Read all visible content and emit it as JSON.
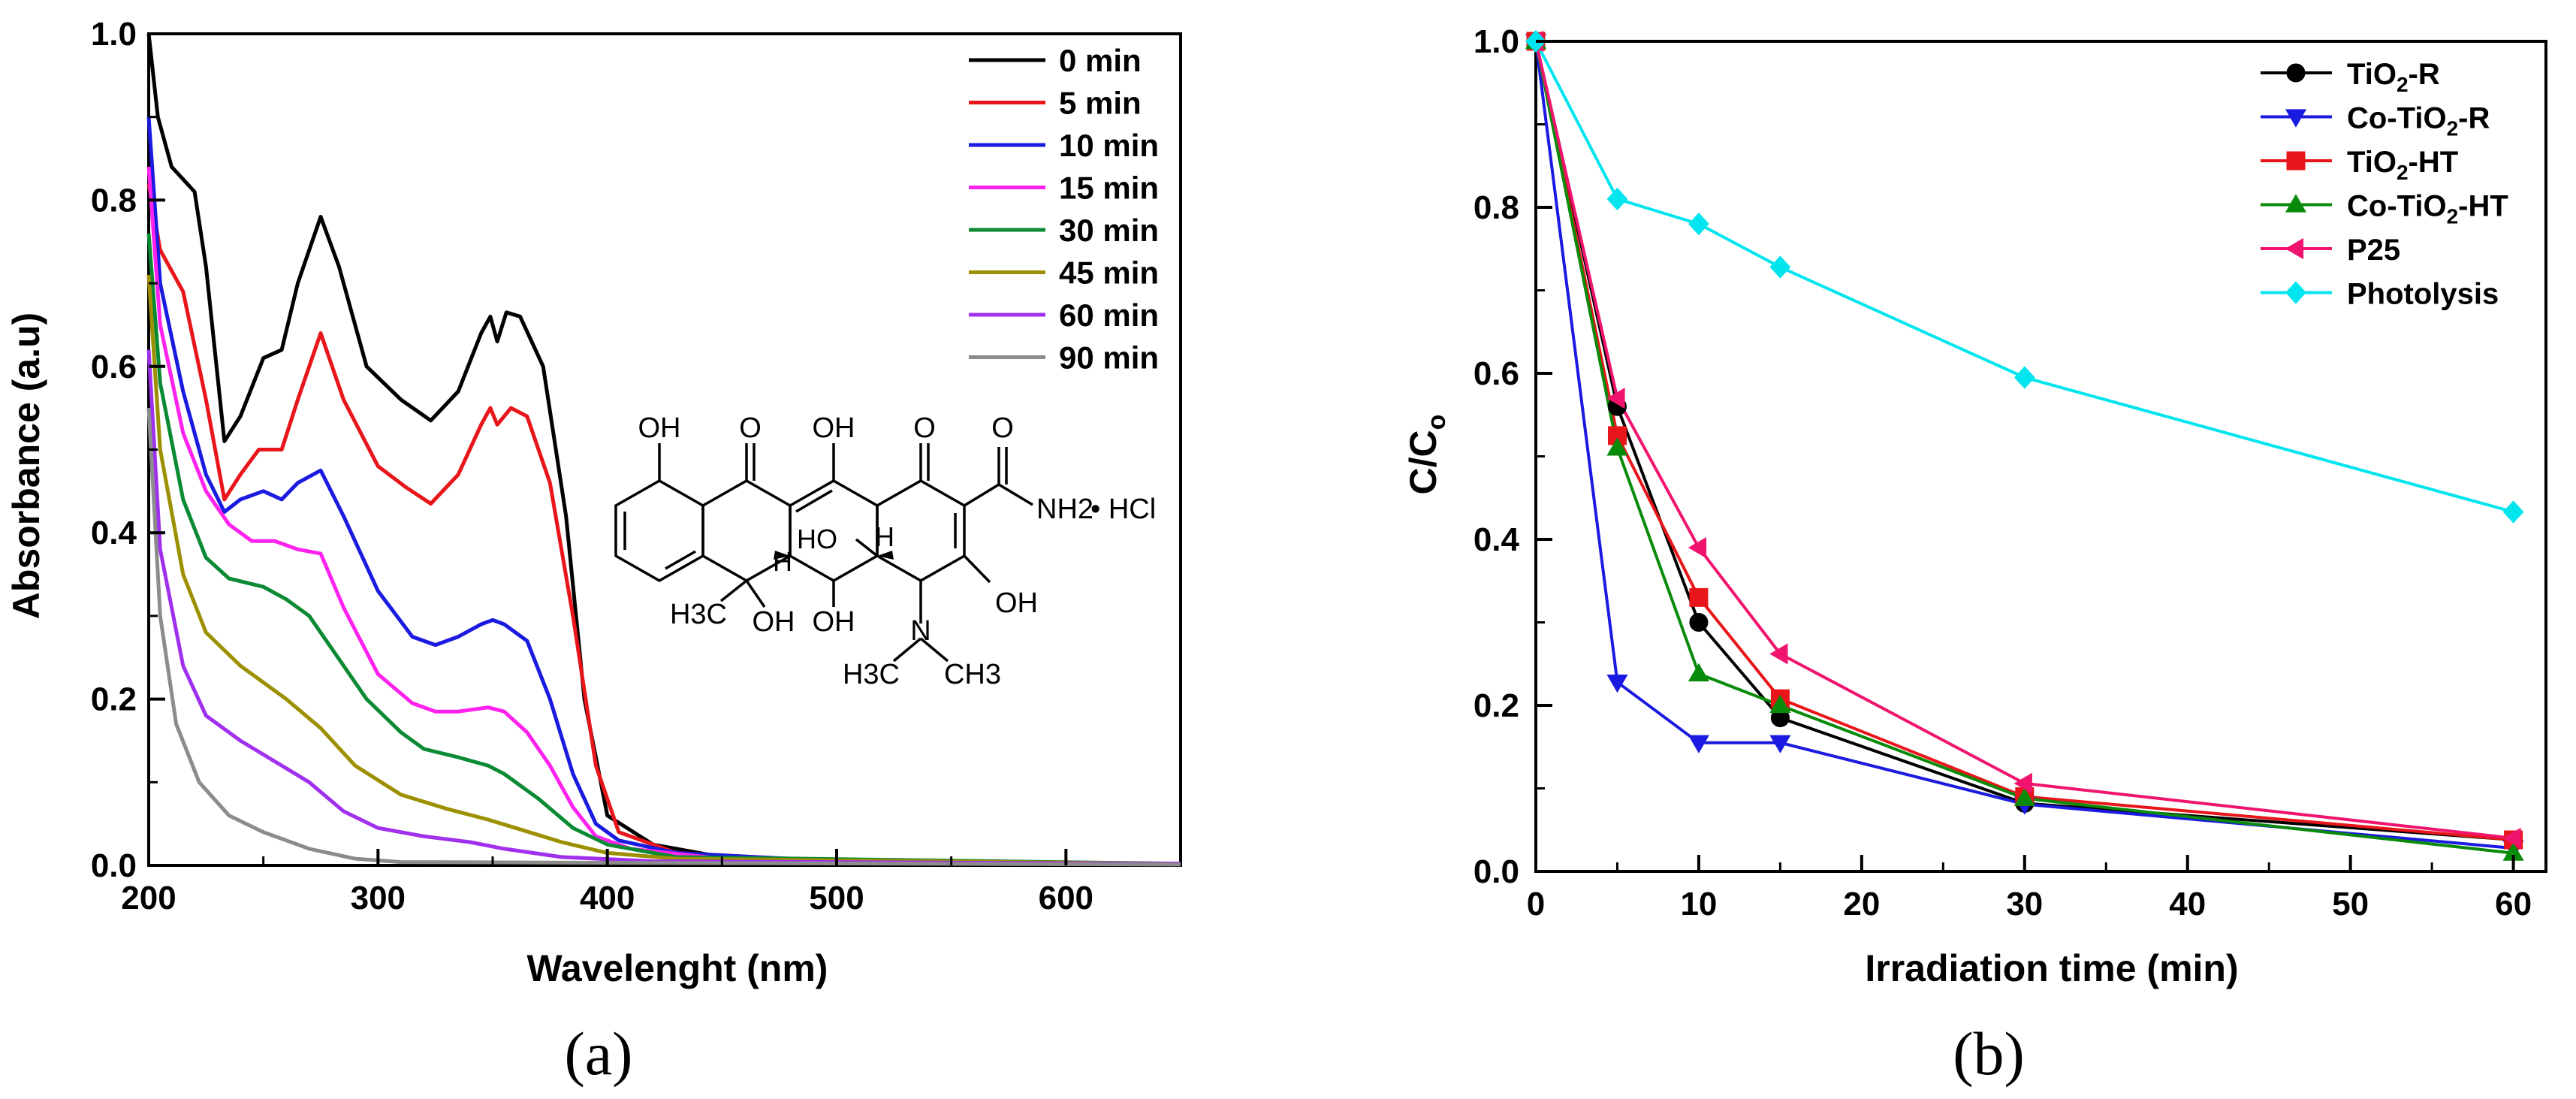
{
  "chart_data": [
    {
      "type": "line",
      "panel_label": "(a)",
      "title": "",
      "xlabel": "Wavelenght (nm)",
      "ylabel": "Absorbance (a.u)",
      "xlim": [
        200,
        650
      ],
      "ylim": [
        0,
        1.0
      ],
      "x_ticks": [
        200,
        300,
        400,
        500,
        600
      ],
      "x_tick_labels": [
        "200",
        "300",
        "400",
        "500",
        "600"
      ],
      "y_ticks": [
        0.0,
        0.2,
        0.4,
        0.6,
        0.8,
        1.0
      ],
      "y_tick_labels": [
        "0.0",
        "0.2",
        "0.4",
        "0.6",
        "0.8",
        "1.0"
      ],
      "legend_position": "top-right",
      "inset": {
        "description": "tetracycline hydrochloride structure",
        "labels": [
          "OH",
          "O",
          "OH",
          "O",
          "O",
          "NH2",
          "• HCl",
          "H",
          "HO",
          "H",
          "OH",
          "H3C",
          "OH",
          "OH",
          "N",
          "H3C",
          "CH3"
        ]
      },
      "series": [
        {
          "name": "0 min",
          "color": "#000000",
          "points": [
            [
              200,
              1.0
            ],
            [
              204,
              0.9
            ],
            [
              210,
              0.84
            ],
            [
              220,
              0.81
            ],
            [
              225,
              0.72
            ],
            [
              233,
              0.51
            ],
            [
              240,
              0.54
            ],
            [
              250,
              0.61
            ],
            [
              258,
              0.62
            ],
            [
              265,
              0.7
            ],
            [
              275,
              0.78
            ],
            [
              283,
              0.72
            ],
            [
              295,
              0.6
            ],
            [
              310,
              0.56
            ],
            [
              323,
              0.535
            ],
            [
              335,
              0.57
            ],
            [
              345,
              0.64
            ],
            [
              349,
              0.66
            ],
            [
              352,
              0.63
            ],
            [
              356,
              0.665
            ],
            [
              362,
              0.66
            ],
            [
              372,
              0.6
            ],
            [
              382,
              0.42
            ],
            [
              390,
              0.2
            ],
            [
              400,
              0.06
            ],
            [
              420,
              0.025
            ],
            [
              450,
              0.01
            ],
            [
              500,
              0.005
            ],
            [
              650,
              0.002
            ]
          ]
        },
        {
          "name": "5 min",
          "color": "#e8151a",
          "points": [
            [
              200,
              0.82
            ],
            [
              205,
              0.74
            ],
            [
              215,
              0.69
            ],
            [
              225,
              0.56
            ],
            [
              233,
              0.44
            ],
            [
              240,
              0.47
            ],
            [
              248,
              0.5
            ],
            [
              258,
              0.5
            ],
            [
              265,
              0.56
            ],
            [
              275,
              0.64
            ],
            [
              285,
              0.56
            ],
            [
              300,
              0.48
            ],
            [
              312,
              0.455
            ],
            [
              323,
              0.435
            ],
            [
              335,
              0.47
            ],
            [
              345,
              0.53
            ],
            [
              349,
              0.55
            ],
            [
              352,
              0.53
            ],
            [
              358,
              0.55
            ],
            [
              365,
              0.54
            ],
            [
              375,
              0.46
            ],
            [
              385,
              0.3
            ],
            [
              395,
              0.12
            ],
            [
              405,
              0.04
            ],
            [
              430,
              0.015
            ],
            [
              500,
              0.005
            ],
            [
              650,
              0.002
            ]
          ]
        },
        {
          "name": "10 min",
          "color": "#1a1ae0",
          "points": [
            [
              200,
              0.9
            ],
            [
              205,
              0.7
            ],
            [
              215,
              0.57
            ],
            [
              225,
              0.47
            ],
            [
              233,
              0.425
            ],
            [
              240,
              0.44
            ],
            [
              250,
              0.45
            ],
            [
              258,
              0.44
            ],
            [
              265,
              0.46
            ],
            [
              275,
              0.475
            ],
            [
              285,
              0.42
            ],
            [
              300,
              0.33
            ],
            [
              315,
              0.275
            ],
            [
              325,
              0.265
            ],
            [
              335,
              0.275
            ],
            [
              345,
              0.29
            ],
            [
              350,
              0.295
            ],
            [
              355,
              0.29
            ],
            [
              365,
              0.27
            ],
            [
              375,
              0.2
            ],
            [
              385,
              0.11
            ],
            [
              395,
              0.05
            ],
            [
              405,
              0.03
            ],
            [
              430,
              0.015
            ],
            [
              500,
              0.005
            ],
            [
              650,
              0.002
            ]
          ]
        },
        {
          "name": "15 min",
          "color": "#ff22ee",
          "points": [
            [
              200,
              0.84
            ],
            [
              205,
              0.65
            ],
            [
              215,
              0.52
            ],
            [
              225,
              0.45
            ],
            [
              235,
              0.41
            ],
            [
              245,
              0.39
            ],
            [
              255,
              0.39
            ],
            [
              265,
              0.38
            ],
            [
              275,
              0.375
            ],
            [
              285,
              0.31
            ],
            [
              300,
              0.23
            ],
            [
              315,
              0.195
            ],
            [
              325,
              0.185
            ],
            [
              335,
              0.185
            ],
            [
              348,
              0.19
            ],
            [
              355,
              0.185
            ],
            [
              365,
              0.16
            ],
            [
              375,
              0.12
            ],
            [
              385,
              0.07
            ],
            [
              395,
              0.035
            ],
            [
              410,
              0.02
            ],
            [
              450,
              0.008
            ],
            [
              650,
              0.002
            ]
          ]
        },
        {
          "name": "30 min",
          "color": "#0a8a32",
          "points": [
            [
              200,
              0.76
            ],
            [
              205,
              0.58
            ],
            [
              215,
              0.44
            ],
            [
              225,
              0.37
            ],
            [
              235,
              0.345
            ],
            [
              250,
              0.335
            ],
            [
              260,
              0.32
            ],
            [
              270,
              0.3
            ],
            [
              280,
              0.26
            ],
            [
              295,
              0.2
            ],
            [
              310,
              0.16
            ],
            [
              320,
              0.14
            ],
            [
              335,
              0.13
            ],
            [
              348,
              0.12
            ],
            [
              355,
              0.11
            ],
            [
              370,
              0.08
            ],
            [
              385,
              0.045
            ],
            [
              400,
              0.025
            ],
            [
              430,
              0.01
            ],
            [
              650,
              0.002
            ]
          ]
        },
        {
          "name": "45 min",
          "color": "#9c9000",
          "points": [
            [
              200,
              0.71
            ],
            [
              205,
              0.5
            ],
            [
              215,
              0.35
            ],
            [
              225,
              0.28
            ],
            [
              240,
              0.24
            ],
            [
              260,
              0.2
            ],
            [
              275,
              0.165
            ],
            [
              290,
              0.12
            ],
            [
              310,
              0.085
            ],
            [
              330,
              0.068
            ],
            [
              348,
              0.055
            ],
            [
              360,
              0.045
            ],
            [
              380,
              0.028
            ],
            [
              400,
              0.015
            ],
            [
              430,
              0.008
            ],
            [
              650,
              0.002
            ]
          ]
        },
        {
          "name": "60 min",
          "color": "#a030ee",
          "points": [
            [
              200,
              0.62
            ],
            [
              205,
              0.38
            ],
            [
              215,
              0.24
            ],
            [
              225,
              0.18
            ],
            [
              240,
              0.15
            ],
            [
              255,
              0.125
            ],
            [
              270,
              0.1
            ],
            [
              285,
              0.065
            ],
            [
              300,
              0.045
            ],
            [
              320,
              0.035
            ],
            [
              340,
              0.028
            ],
            [
              355,
              0.02
            ],
            [
              380,
              0.01
            ],
            [
              420,
              0.005
            ],
            [
              650,
              0.002
            ]
          ]
        },
        {
          "name": "90 min",
          "color": "#8c8c8c",
          "points": [
            [
              200,
              0.55
            ],
            [
              205,
              0.3
            ],
            [
              212,
              0.17
            ],
            [
              222,
              0.1
            ],
            [
              235,
              0.06
            ],
            [
              250,
              0.04
            ],
            [
              270,
              0.02
            ],
            [
              290,
              0.008
            ],
            [
              310,
              0.004
            ],
            [
              650,
              0.001
            ]
          ]
        }
      ]
    },
    {
      "type": "line",
      "panel_label": "(b)",
      "title": "",
      "xlabel": "Irradiation time (min)",
      "ylabel": "C/C",
      "ylabel_subscript": "o",
      "xlim": [
        0,
        62
      ],
      "ylim": [
        0,
        1.0
      ],
      "x_ticks": [
        0,
        10,
        20,
        30,
        40,
        50,
        60
      ],
      "x_tick_labels": [
        "0",
        "10",
        "20",
        "30",
        "40",
        "50",
        "60"
      ],
      "y_ticks": [
        0.0,
        0.2,
        0.4,
        0.6,
        0.8,
        1.0
      ],
      "y_tick_labels": [
        "0.0",
        "0.2",
        "0.4",
        "0.6",
        "0.8",
        "1.0"
      ],
      "legend_position": "top-right",
      "x": [
        0,
        5,
        10,
        15,
        30,
        60
      ],
      "series": [
        {
          "name": "TiO2-R",
          "name_pre": "TiO",
          "name_sub": "2",
          "name_post": "-R",
          "color": "#000000",
          "marker": "circle",
          "values": [
            1.0,
            0.56,
            0.3,
            0.185,
            0.082,
            0.038
          ]
        },
        {
          "name": "Co-TiO2-R",
          "name_pre": "Co-TiO",
          "name_sub": "2",
          "name_post": "-R",
          "color": "#1a1ae0",
          "marker": "triangle-down",
          "values": [
            1.0,
            0.228,
            0.155,
            0.155,
            0.081,
            0.028
          ]
        },
        {
          "name": "TiO2-HT",
          "name_pre": "TiO",
          "name_sub": "2",
          "name_post": "-HT",
          "color": "#e8151a",
          "marker": "square",
          "values": [
            1.0,
            0.525,
            0.33,
            0.208,
            0.09,
            0.038
          ]
        },
        {
          "name": "Co-TiO2-HT",
          "name_pre": "Co-TiO",
          "name_sub": "2",
          "name_post": "-HT",
          "color": "#0a8a0a",
          "marker": "triangle-up",
          "values": [
            1.0,
            0.51,
            0.238,
            0.2,
            0.088,
            0.022
          ]
        },
        {
          "name": "P25",
          "name_pre": "P25",
          "name_sub": "",
          "name_post": "",
          "color": "#f0146e",
          "marker": "triangle-left",
          "values": [
            1.0,
            0.57,
            0.39,
            0.262,
            0.106,
            0.04
          ]
        },
        {
          "name": "Photolysis",
          "name_pre": "Photolysis",
          "name_sub": "",
          "name_post": "",
          "color": "#00e5ee",
          "marker": "diamond",
          "values": [
            1.0,
            0.81,
            0.78,
            0.728,
            0.595,
            0.433
          ]
        }
      ]
    }
  ]
}
